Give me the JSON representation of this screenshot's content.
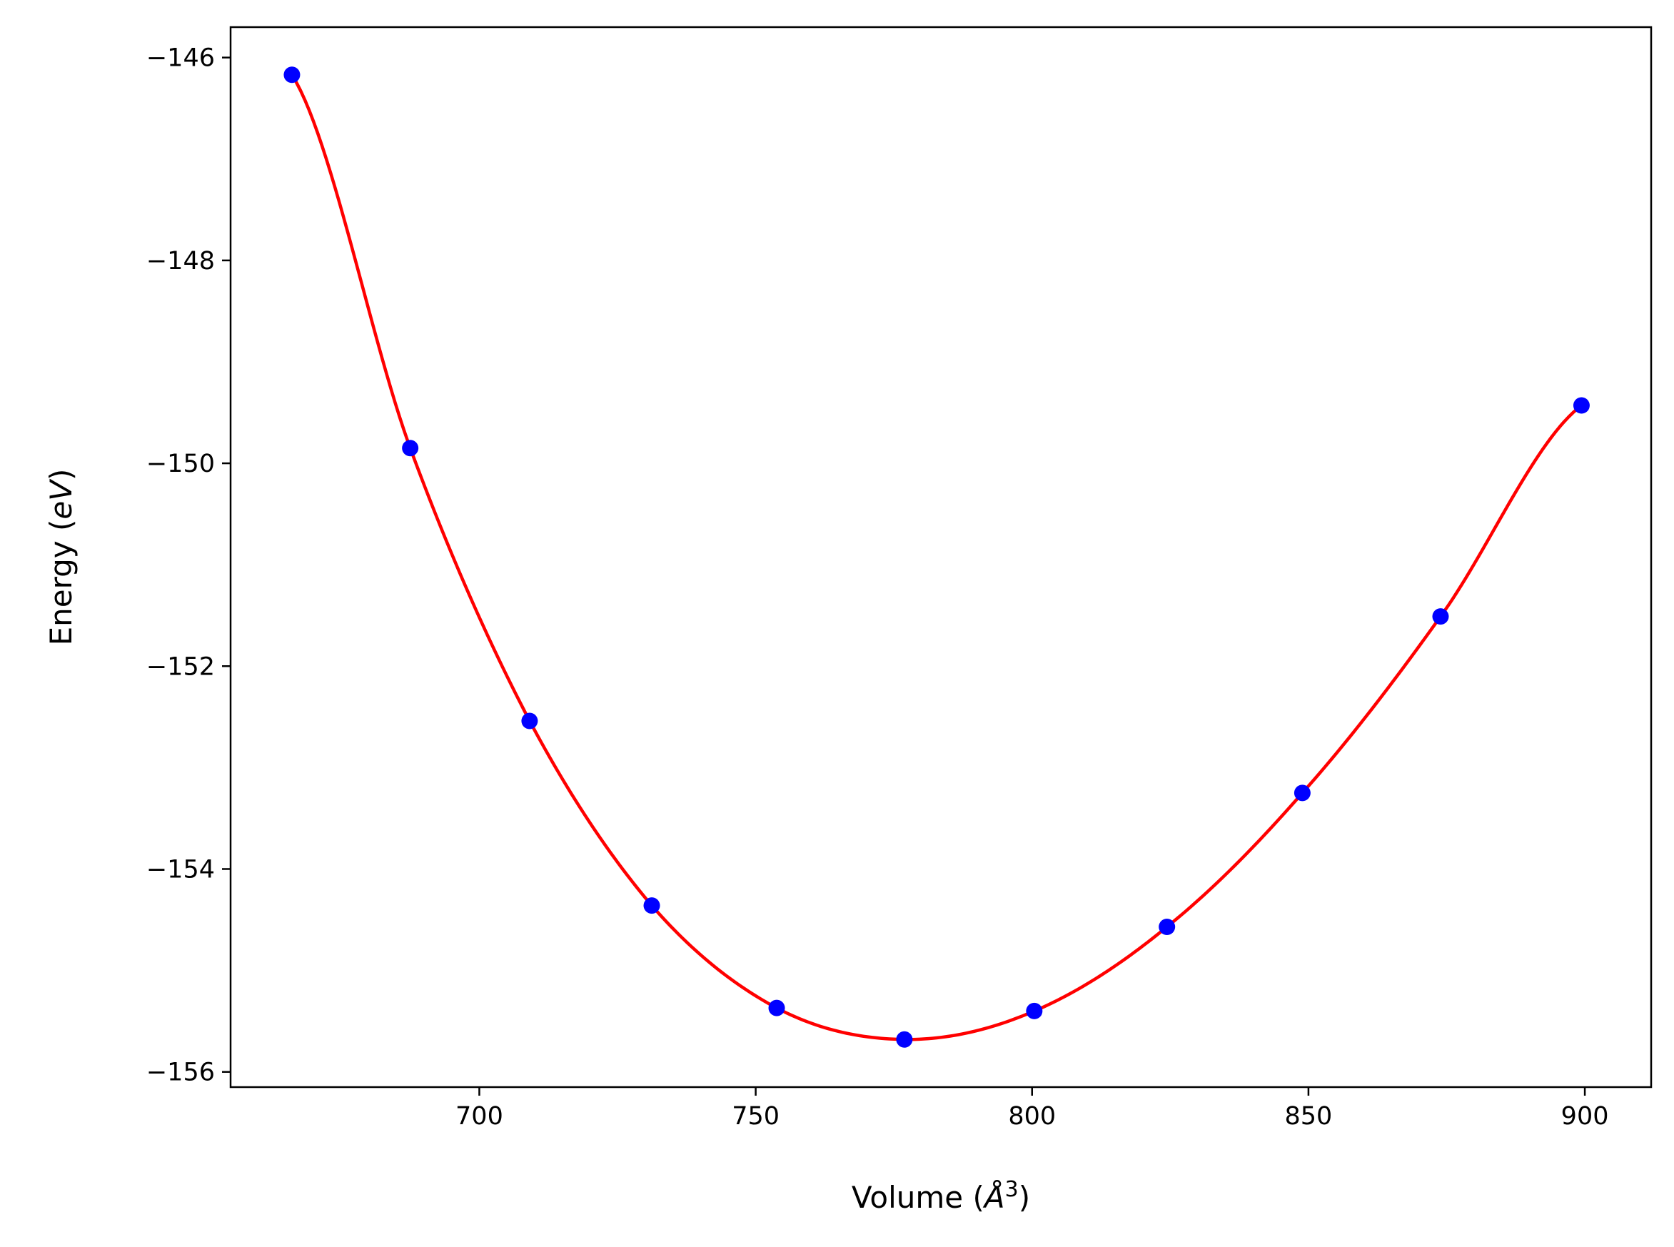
{
  "chart_data": {
    "type": "line",
    "xlabel_parts": [
      "Volume (",
      "Å",
      "3",
      ")"
    ],
    "ylabel_parts": [
      "Energy (",
      "eV",
      ")"
    ],
    "xlim": [
      655,
      912
    ],
    "ylim": [
      -156.15,
      -145.7
    ],
    "xticks": [
      700,
      750,
      800,
      850,
      900
    ],
    "xtick_labels": [
      "700",
      "750",
      "800",
      "850",
      "900"
    ],
    "yticks": [
      -156,
      -154,
      -152,
      -150,
      -148,
      -146
    ],
    "ytick_labels": [
      "−156",
      "−154",
      "−152",
      "−150",
      "−148",
      "−146"
    ],
    "grid": false,
    "series": [
      {
        "kind": "points",
        "color": "#0000ff",
        "x": [
          666.1,
          687.5,
          709.1,
          731.2,
          753.8,
          776.9,
          800.4,
          824.4,
          848.9,
          873.9,
          899.4
        ],
        "y": [
          -146.17,
          -149.85,
          -152.54,
          -154.36,
          -155.37,
          -155.68,
          -155.4,
          -154.57,
          -153.25,
          -151.51,
          -149.43
        ]
      },
      {
        "kind": "fit",
        "color": "#ff0000",
        "x": [
          666.1,
          687.5,
          709.1,
          731.2,
          753.8,
          776.9,
          800.4,
          824.4,
          848.9,
          873.9,
          899.4
        ],
        "y": [
          -146.17,
          -149.85,
          -152.54,
          -154.36,
          -155.37,
          -155.68,
          -155.4,
          -154.57,
          -153.25,
          -151.51,
          -149.43
        ]
      }
    ]
  }
}
